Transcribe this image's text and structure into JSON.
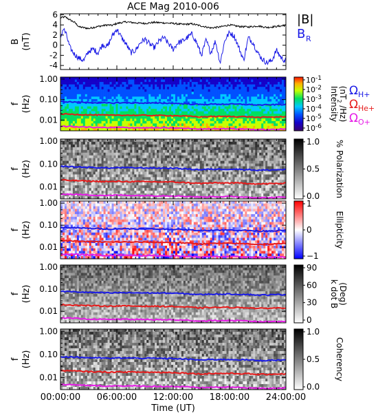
{
  "chart_data": {
    "type": "heatmap",
    "title": "ACE Mag 2010-006",
    "xlabel": "Time (UT)",
    "x_ticks": [
      "00:00:00",
      "06:00:00",
      "12:00:00",
      "18:00:00",
      "24:00:00"
    ],
    "x_range_hours": [
      0,
      24
    ],
    "panels": [
      {
        "id": "b-field",
        "type": "line",
        "ylabel": "B",
        "yunit": "(nT)",
        "ylim": [
          -4.8,
          6.2
        ],
        "y_ticks": [
          6,
          4,
          2,
          0,
          -2,
          -4
        ],
        "legend": [
          "|B|",
          "B"
        ],
        "legend_subscript": "R",
        "series": [
          {
            "name": "|B|",
            "color": "#000000",
            "x": [
              0,
              0.5,
              1,
              1.5,
              2,
              3,
              4,
              5,
              5.5,
              6,
              7,
              8,
              9,
              10,
              11,
              12,
              13,
              14,
              15,
              16,
              17,
              18,
              19,
              20,
              21,
              22,
              23,
              24
            ],
            "y": [
              5.4,
              5.6,
              5.0,
              4.5,
              3.6,
              3.3,
              3.7,
              4.0,
              3.9,
              4.3,
              4.6,
              4.4,
              4.3,
              4.5,
              4.4,
              4.3,
              4.1,
              4.2,
              3.8,
              3.4,
              3.6,
              4.0,
              3.7,
              3.6,
              3.8,
              3.5,
              3.7,
              3.9
            ]
          },
          {
            "name": "B",
            "color": "#1a1ae6",
            "x": [
              0,
              0.3,
              0.6,
              1,
              1.5,
              2,
              2.5,
              3,
              3.5,
              4,
              4.5,
              5,
              5.5,
              6,
              6.5,
              7,
              7.5,
              8,
              8.5,
              9,
              9.5,
              10,
              10.5,
              11,
              11.5,
              12,
              12.5,
              13,
              13.5,
              14,
              14.5,
              15,
              15.5,
              16,
              16.5,
              17,
              17.5,
              18,
              18.5,
              19,
              19.5,
              20,
              20.5,
              21,
              21.5,
              22,
              22.5,
              23,
              23.5,
              24
            ],
            "y": [
              1.5,
              3.3,
              2.2,
              -0.5,
              -1.8,
              -2.6,
              -3.0,
              -1.2,
              -0.8,
              -1.5,
              0.2,
              -0.3,
              1.8,
              3.2,
              1.5,
              0.2,
              -1.5,
              -1.0,
              0.5,
              1.2,
              0.2,
              -0.5,
              0.8,
              1.5,
              0.3,
              -0.8,
              0.5,
              0.8,
              1.5,
              2.2,
              0.5,
              -2.0,
              1.0,
              -1.5,
              0.8,
              -3.5,
              1.0,
              2.5,
              1.8,
              -0.5,
              -3.0,
              1.5,
              0.5,
              -1.5,
              -2.8,
              -3.5,
              -3.0,
              -1.0,
              -2.5,
              -3.2
            ]
          }
        ]
      },
      {
        "id": "intensity",
        "type": "heatmap",
        "ylabel": "f",
        "yunit": "(Hz)",
        "y_ticks": [
          "1.00",
          "0.10",
          "0.01"
        ],
        "colorbar_label": "Intensity",
        "colorbar_unit": "(nT /Hz)",
        "colorbar_unit_sup": "2",
        "colorbar_ticks": [
          {
            "base": "10",
            "exp": "-1"
          },
          {
            "base": "10",
            "exp": "-2"
          },
          {
            "base": "10",
            "exp": "-3"
          },
          {
            "base": "10",
            "exp": "-4"
          },
          {
            "base": "10",
            "exp": "-5"
          },
          {
            "base": "10",
            "exp": "-6"
          }
        ],
        "legend": [
          {
            "symbol": "Ω",
            "sub": "H+",
            "color": "#1a1ae6"
          },
          {
            "symbol": "Ω",
            "sub": "He+",
            "color": "#e61a1a"
          },
          {
            "symbol": "Ω",
            "sub": "O+",
            "color": "#e61ae6"
          }
        ]
      },
      {
        "id": "polarization",
        "type": "heatmap",
        "ylabel": "f",
        "yunit": "(Hz)",
        "y_ticks": [
          "1.00",
          "0.10",
          "0.01"
        ],
        "colorbar_label": "% Polarization",
        "colorbar_ticks": [
          "1.0",
          "0.5",
          "0.0"
        ]
      },
      {
        "id": "ellipticity",
        "type": "heatmap",
        "ylabel": "f",
        "yunit": "(Hz)",
        "y_ticks": [
          "1.00",
          "0.10",
          "0.01"
        ],
        "colorbar_label": "Ellipticity",
        "colorbar_ticks": [
          "1",
          "0",
          "−1"
        ]
      },
      {
        "id": "kdotb",
        "type": "heatmap",
        "ylabel": "f",
        "yunit": "(Hz)",
        "y_ticks": [
          "1.00",
          "0.10",
          "0.01"
        ],
        "colorbar_label": "k dot B",
        "colorbar_unit": "(Deg)",
        "colorbar_ticks": [
          "90",
          "60",
          "30",
          "0"
        ]
      },
      {
        "id": "coherency",
        "type": "heatmap",
        "ylabel": "f",
        "yunit": "(Hz)",
        "y_ticks": [
          "1.00",
          "0.10",
          "0.01"
        ],
        "colorbar_label": "Coherency",
        "colorbar_ticks": [
          "1.0",
          "0.5",
          "0.0"
        ]
      }
    ],
    "gyrofrequency_lines": [
      {
        "name": "Ω H+",
        "color": "#1a1ae6",
        "x_hours": [
          0,
          3,
          5.5,
          6,
          9,
          12,
          14,
          15,
          16,
          18,
          20,
          21,
          22,
          24
        ],
        "freq_hz": [
          0.08,
          0.072,
          0.067,
          0.07,
          0.068,
          0.066,
          0.06,
          0.057,
          0.06,
          0.06,
          0.058,
          0.054,
          0.055,
          0.058
        ]
      },
      {
        "name": "Ω He+",
        "color": "#e61a1a",
        "x_hours": [
          0,
          3,
          5.5,
          6,
          9,
          12,
          14,
          15,
          16,
          18,
          20,
          21,
          22,
          24
        ],
        "freq_hz": [
          0.02,
          0.018,
          0.017,
          0.0175,
          0.017,
          0.0165,
          0.015,
          0.0142,
          0.015,
          0.015,
          0.0145,
          0.0135,
          0.0138,
          0.0145
        ]
      },
      {
        "name": "Ω O+",
        "color": "#e61ae6",
        "x_hours": [
          0,
          3,
          5.5,
          6,
          9,
          12,
          14,
          15,
          16,
          18,
          20,
          21,
          22,
          24
        ],
        "freq_hz": [
          0.005,
          0.0045,
          0.0042,
          0.0044,
          0.0042,
          0.0041,
          0.0038,
          0.0036,
          0.0038,
          0.0038,
          0.0036,
          0.0034,
          0.0034,
          0.0036
        ]
      }
    ],
    "heatmap_values_shown": false,
    "grid": false,
    "legend_placement": "right"
  }
}
